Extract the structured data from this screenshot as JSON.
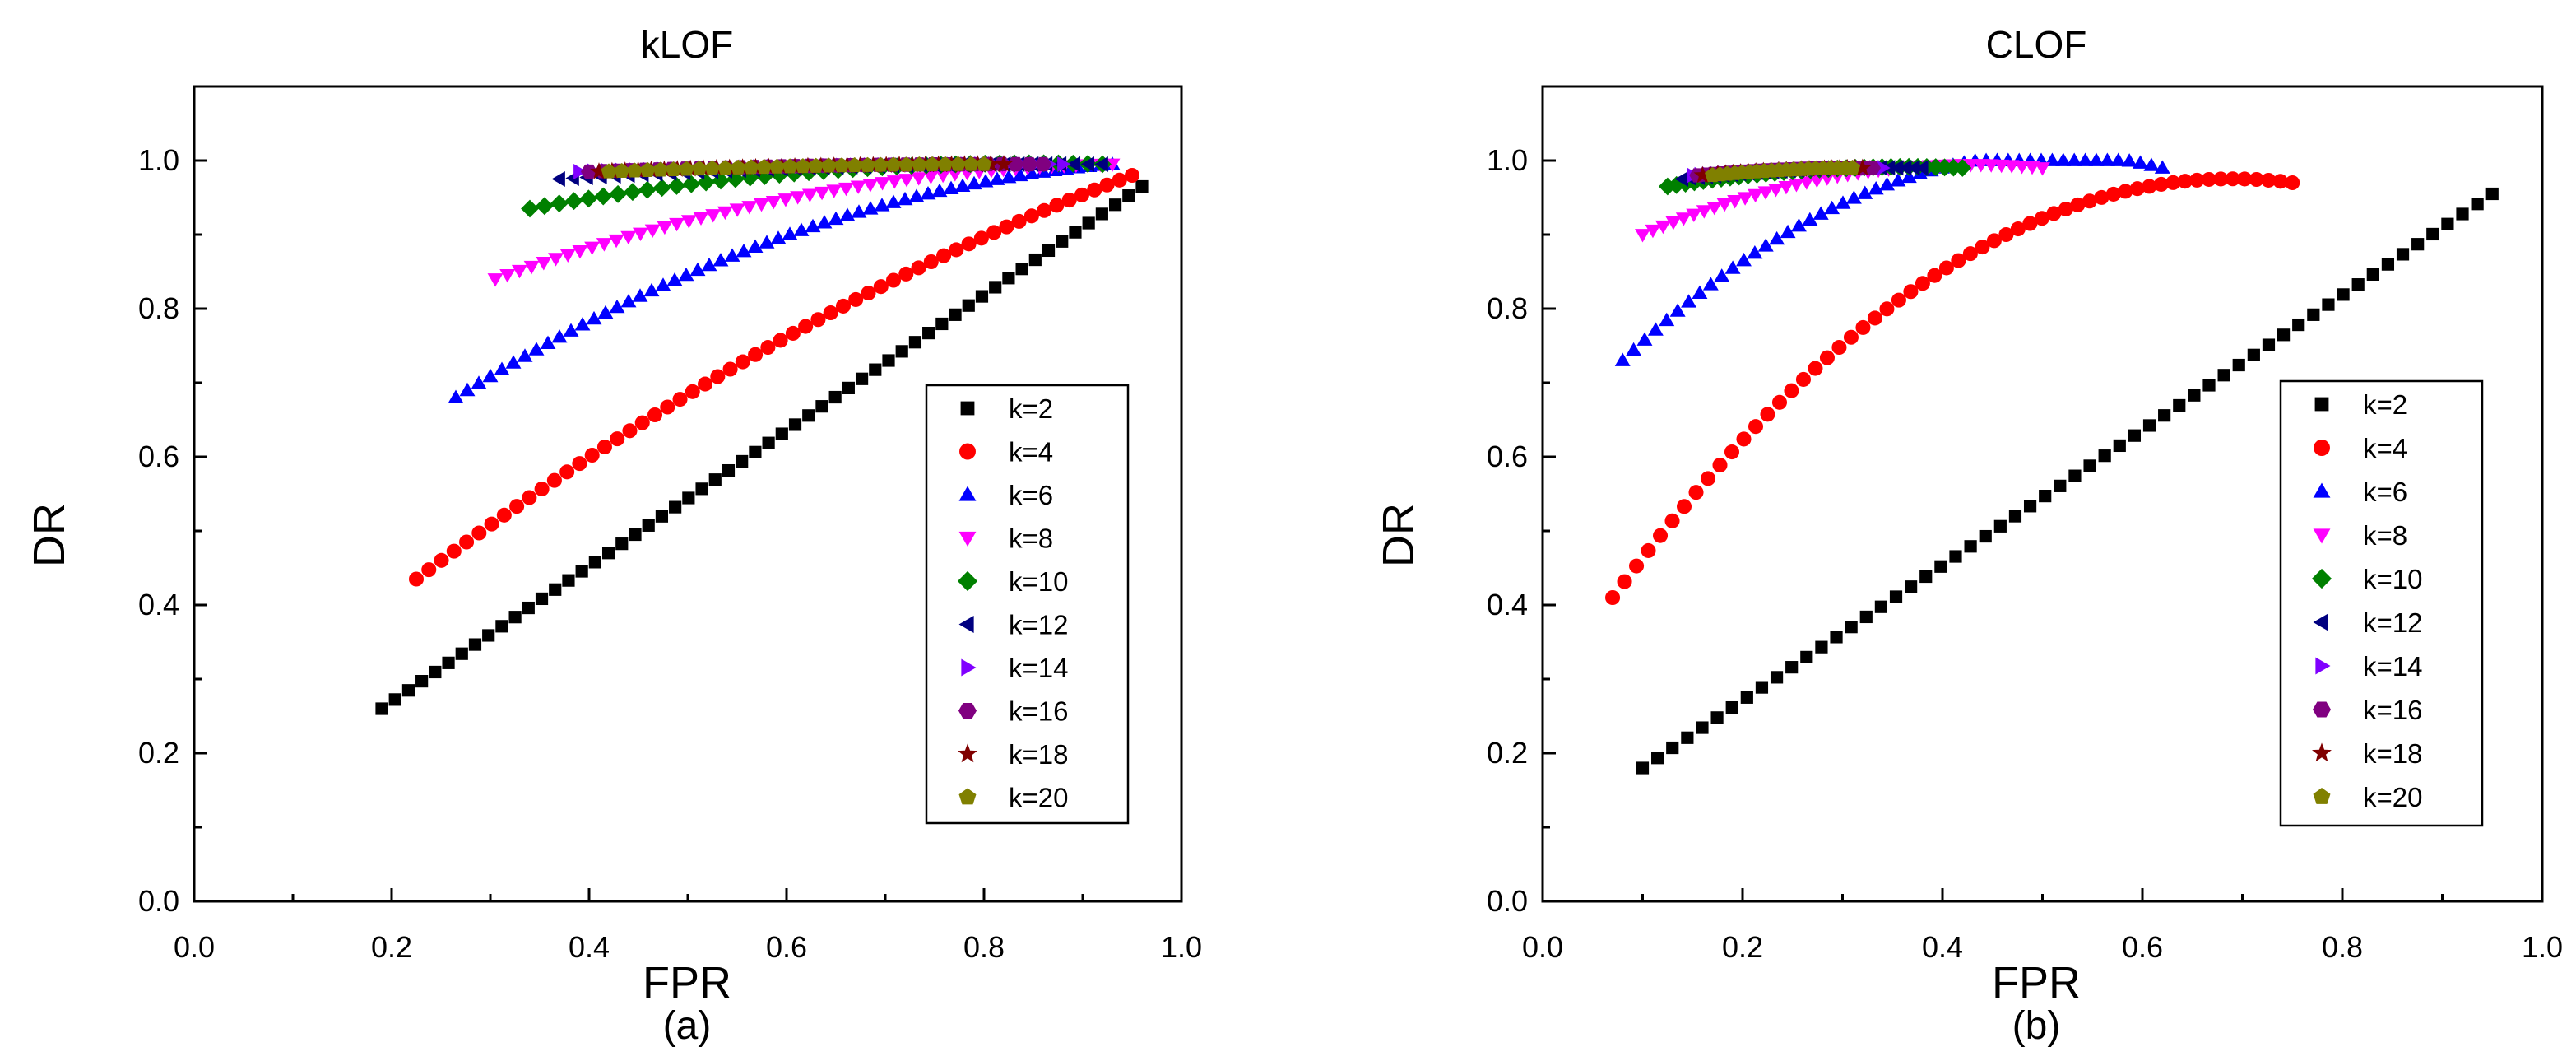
{
  "figure": {
    "panel_labels": [
      "(a)",
      "(b)"
    ]
  },
  "chart_data": [
    {
      "type": "scatter",
      "title": "kLOF",
      "xlabel": "FPR",
      "ylabel": "DR",
      "xlim": [
        0.0,
        1.0
      ],
      "ylim": [
        0.0,
        1.1
      ],
      "xticks": [
        "0.0",
        "0.2",
        "0.4",
        "0.6",
        "0.8",
        "1.0"
      ],
      "yticks": [
        "0.0",
        "0.2",
        "0.4",
        "0.6",
        "0.8",
        "1.0"
      ],
      "legend_position": "bottom-right",
      "series": [
        {
          "name": "k=2",
          "marker": "square",
          "color": "#000000",
          "start": [
            0.19,
            0.26
          ],
          "end": [
            0.96,
            0.965
          ],
          "count": 58,
          "curve": 0.0
        },
        {
          "name": "k=4",
          "marker": "circle",
          "color": "#ff0000",
          "start": [
            0.225,
            0.435
          ],
          "end": [
            0.95,
            0.98
          ],
          "count": 58,
          "curve": 0.045
        },
        {
          "name": "k=6",
          "marker": "triangle-up",
          "color": "#0000ff",
          "start": [
            0.265,
            0.68
          ],
          "end": [
            0.93,
            0.995
          ],
          "count": 58,
          "curve": 0.06
        },
        {
          "name": "k=8",
          "marker": "triangle-down",
          "color": "#ff00ff",
          "start": [
            0.305,
            0.84
          ],
          "end": [
            0.93,
            0.995
          ],
          "count": 52,
          "curve": 0.035
        },
        {
          "name": "k=10",
          "marker": "diamond",
          "color": "#008000",
          "start": [
            0.34,
            0.935
          ],
          "end": [
            0.92,
            0.995
          ],
          "count": 40,
          "curve": 0.02
        },
        {
          "name": "k=12",
          "marker": "triangle-left",
          "color": "#000080",
          "start": [
            0.37,
            0.975
          ],
          "end": [
            0.92,
            0.995
          ],
          "count": 40,
          "curve": 0.006
        },
        {
          "name": "k=14",
          "marker": "triangle-right",
          "color": "#8000ff",
          "start": [
            0.39,
            0.985
          ],
          "end": [
            0.88,
            0.995
          ],
          "count": 36,
          "curve": 0.003
        },
        {
          "name": "k=16",
          "marker": "hexagon",
          "color": "#800080",
          "start": [
            0.4,
            0.985
          ],
          "end": [
            0.86,
            0.995
          ],
          "count": 34,
          "curve": 0.003
        },
        {
          "name": "k=18",
          "marker": "star",
          "color": "#800000",
          "start": [
            0.41,
            0.985
          ],
          "end": [
            0.82,
            0.995
          ],
          "count": 32,
          "curve": 0.002
        },
        {
          "name": "k=20",
          "marker": "pentagon",
          "color": "#808000",
          "start": [
            0.42,
            0.985
          ],
          "end": [
            0.8,
            0.995
          ],
          "count": 30,
          "curve": 0.002
        }
      ]
    },
    {
      "type": "scatter",
      "title": "CLOF",
      "xlabel": "FPR",
      "ylabel": "DR",
      "xlim": [
        0.0,
        1.0
      ],
      "ylim": [
        0.0,
        1.1
      ],
      "xticks": [
        "0.0",
        "0.2",
        "0.4",
        "0.6",
        "0.8",
        "1.0"
      ],
      "yticks": [
        "0.0",
        "0.2",
        "0.4",
        "0.6",
        "0.8",
        "1.0"
      ],
      "legend_position": "bottom-right",
      "series": [
        {
          "name": "k=2",
          "marker": "square",
          "color": "#000000",
          "start": [
            0.1,
            0.18
          ],
          "end": [
            0.95,
            0.955
          ],
          "count": 58,
          "curve": 0.0
        },
        {
          "name": "k=4",
          "marker": "circle",
          "color": "#ff0000",
          "start": [
            0.07,
            0.41
          ],
          "end": [
            0.75,
            0.97
          ],
          "count": 58,
          "curve": 0.17
        },
        {
          "name": "k=6",
          "marker": "triangle-up",
          "color": "#0000ff",
          "start": [
            0.08,
            0.73
          ],
          "end": [
            0.62,
            0.99
          ],
          "count": 50,
          "curve": 0.11
        },
        {
          "name": "k=8",
          "marker": "triangle-down",
          "color": "#ff00ff",
          "start": [
            0.1,
            0.9
          ],
          "end": [
            0.5,
            0.99
          ],
          "count": 40,
          "curve": 0.035
        },
        {
          "name": "k=10",
          "marker": "diamond",
          "color": "#008000",
          "start": [
            0.125,
            0.965
          ],
          "end": [
            0.42,
            0.99
          ],
          "count": 34,
          "curve": 0.01
        },
        {
          "name": "k=12",
          "marker": "triangle-left",
          "color": "#000080",
          "start": [
            0.14,
            0.975
          ],
          "end": [
            0.38,
            0.99
          ],
          "count": 30,
          "curve": 0.005
        },
        {
          "name": "k=14",
          "marker": "triangle-right",
          "color": "#8000ff",
          "start": [
            0.15,
            0.98
          ],
          "end": [
            0.34,
            0.99
          ],
          "count": 26,
          "curve": 0.003
        },
        {
          "name": "k=16",
          "marker": "hexagon",
          "color": "#800080",
          "start": [
            0.155,
            0.98
          ],
          "end": [
            0.33,
            0.99
          ],
          "count": 24,
          "curve": 0.003
        },
        {
          "name": "k=18",
          "marker": "star",
          "color": "#800000",
          "start": [
            0.16,
            0.98
          ],
          "end": [
            0.32,
            0.99
          ],
          "count": 22,
          "curve": 0.002
        },
        {
          "name": "k=20",
          "marker": "pentagon",
          "color": "#808000",
          "start": [
            0.17,
            0.98
          ],
          "end": [
            0.31,
            0.99
          ],
          "count": 20,
          "curve": 0.002
        }
      ]
    }
  ]
}
